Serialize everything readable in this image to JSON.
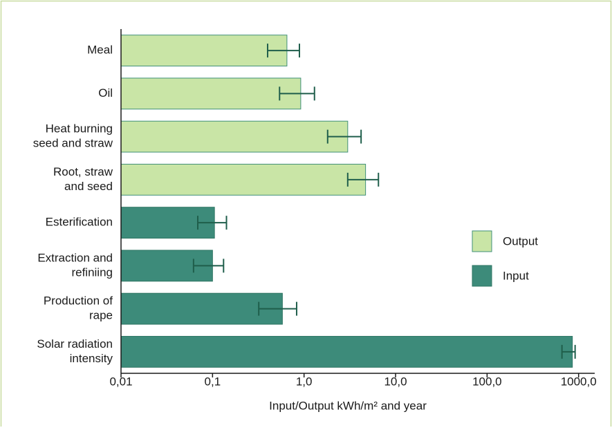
{
  "chart_data": {
    "type": "bar",
    "orientation": "horizontal",
    "categories": [
      [
        "Meal"
      ],
      [
        "Oil"
      ],
      [
        "Heat burning",
        "seed and straw"
      ],
      [
        "Root, straw",
        "and seed"
      ],
      [
        "Esterification"
      ],
      [
        "Extraction and",
        "refiniing"
      ],
      [
        "Production of",
        "rape"
      ],
      [
        "Solar radiation",
        "intensity"
      ]
    ],
    "series": [
      {
        "name": "Output",
        "color": "#c9e5a6",
        "edge": "#3f8f78",
        "values": [
          0.65,
          0.92,
          3.0,
          4.7,
          null,
          null,
          null,
          null
        ],
        "error_low": [
          0.4,
          0.54,
          1.81,
          3.0,
          null,
          null,
          null,
          null
        ],
        "error_high": [
          0.89,
          1.3,
          4.2,
          6.5,
          null,
          null,
          null,
          null
        ]
      },
      {
        "name": "Input",
        "color": "#3d8b7a",
        "edge": "#2e7563",
        "values": [
          null,
          null,
          null,
          null,
          0.105,
          0.1,
          0.58,
          855
        ],
        "error_low": [
          null,
          null,
          null,
          null,
          0.069,
          0.062,
          0.32,
          658
        ],
        "error_high": [
          null,
          null,
          null,
          null,
          0.142,
          0.132,
          0.83,
          916
        ]
      }
    ],
    "error_color": "#1f5e4b",
    "xlabel": "Input/Output kWh/m² and year",
    "xscale": "log",
    "xlim": [
      0.01,
      1500
    ],
    "xticks": [
      {
        "value": 0.01,
        "label": "0,01"
      },
      {
        "value": 0.1,
        "label": "0,1"
      },
      {
        "value": 1,
        "label": "1,0"
      },
      {
        "value": 10,
        "label": "10,0"
      },
      {
        "value": 100,
        "label": "100,0"
      },
      {
        "value": 1000,
        "label": "1000,0"
      }
    ],
    "legend": "right"
  }
}
